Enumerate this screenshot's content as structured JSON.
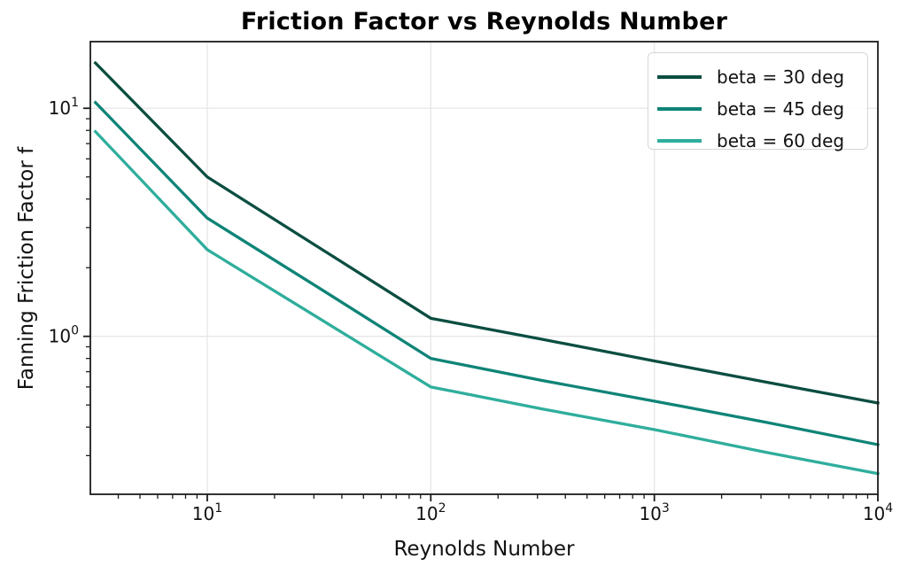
{
  "page": {
    "background": "#ffffff"
  },
  "chart_data": {
    "type": "line",
    "title": "Friction Factor vs Reynolds Number",
    "xlabel": "Reynolds Number",
    "ylabel": "Fanning Friction Factor f",
    "x_scale": "log",
    "y_scale": "log",
    "xlim": [
      3,
      10000
    ],
    "ylim": [
      0.203,
      19.6
    ],
    "grid": "major",
    "grid_color": "#e6e6e6",
    "axis_color": "#1c1c1c",
    "background_color": "#ffffff",
    "line_width": 3.3,
    "legend_position": "upper right",
    "x_major_ticks": [
      {
        "value": 10,
        "label": "10^1"
      },
      {
        "value": 100,
        "label": "10^2"
      },
      {
        "value": 1000,
        "label": "10^3"
      },
      {
        "value": 10000,
        "label": "10^4"
      }
    ],
    "y_major_ticks": [
      {
        "value": 1,
        "label": "10^0"
      },
      {
        "value": 10,
        "label": "10^1"
      }
    ],
    "x": [
      3.162,
      10,
      31.62,
      100,
      316.2,
      1000,
      3162,
      10000
    ],
    "series": [
      {
        "name": "beta = 30 deg",
        "color": "#0b4e41",
        "values": [
          15.8,
          5.0,
          2.45,
          1.2,
          0.97,
          0.78,
          0.63,
          0.51
        ]
      },
      {
        "name": "beta = 45 deg",
        "color": "#0e8477",
        "values": [
          10.6,
          3.3,
          1.63,
          0.8,
          0.64,
          0.52,
          0.42,
          0.335
        ]
      },
      {
        "name": "beta = 60 deg",
        "color": "#2fae9c",
        "values": [
          7.9,
          2.4,
          1.2,
          0.6,
          0.48,
          0.39,
          0.31,
          0.25
        ]
      }
    ]
  }
}
